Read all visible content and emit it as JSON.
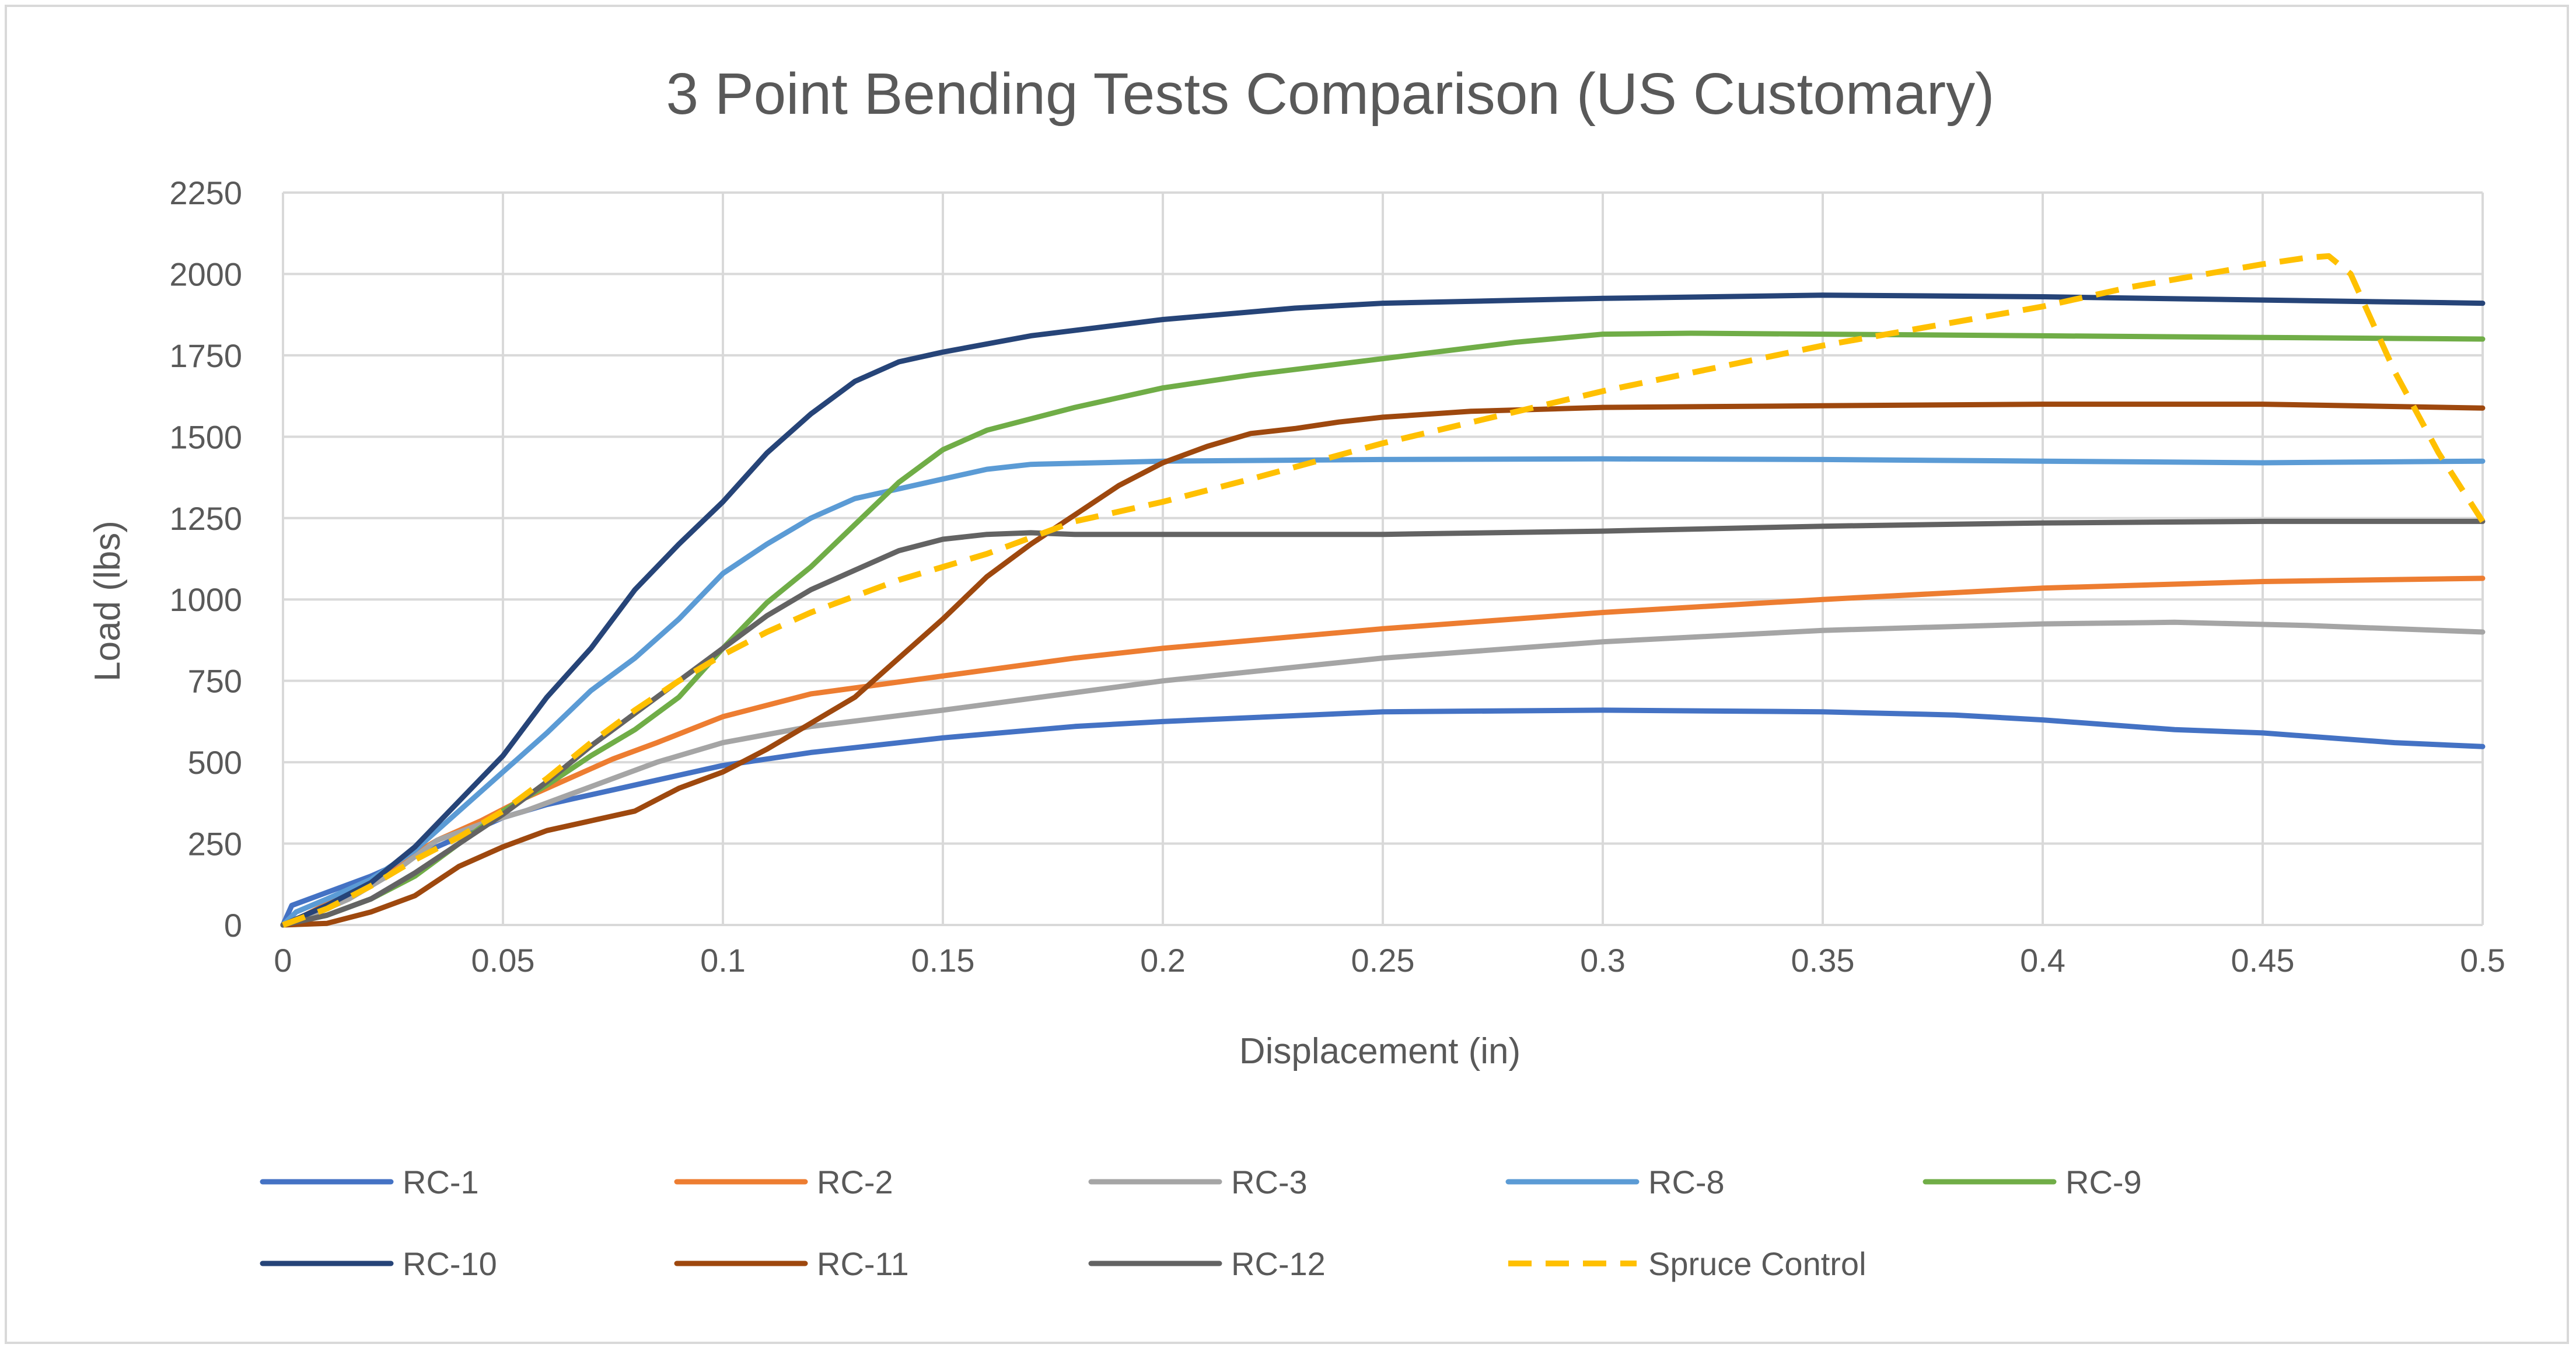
{
  "chart_data": {
    "type": "line",
    "title": "3 Point Bending Tests Comparison (US Customary)",
    "xlabel": "Displacement (in)",
    "ylabel": "Load (lbs)",
    "xlim": [
      0,
      0.5
    ],
    "ylim": [
      0,
      2250
    ],
    "x_ticks": [
      "0",
      "0.05",
      "0.1",
      "0.15",
      "0.2",
      "0.25",
      "0.3",
      "0.35",
      "0.4",
      "0.45",
      "0.5"
    ],
    "y_ticks": [
      "0",
      "250",
      "500",
      "750",
      "1000",
      "1250",
      "1500",
      "1750",
      "2000",
      "2250"
    ],
    "grid": true,
    "legend_position": "bottom",
    "series": [
      {
        "name": "RC-1",
        "color": "#4472c4",
        "dash": false,
        "points": [
          [
            0,
            0
          ],
          [
            0.002,
            60
          ],
          [
            0.01,
            100
          ],
          [
            0.02,
            150
          ],
          [
            0.03,
            210
          ],
          [
            0.04,
            270
          ],
          [
            0.05,
            330
          ],
          [
            0.06,
            370
          ],
          [
            0.07,
            400
          ],
          [
            0.08,
            430
          ],
          [
            0.09,
            460
          ],
          [
            0.1,
            490
          ],
          [
            0.12,
            530
          ],
          [
            0.15,
            575
          ],
          [
            0.18,
            610
          ],
          [
            0.2,
            625
          ],
          [
            0.25,
            655
          ],
          [
            0.3,
            660
          ],
          [
            0.35,
            655
          ],
          [
            0.38,
            645
          ],
          [
            0.4,
            630
          ],
          [
            0.43,
            600
          ],
          [
            0.45,
            590
          ],
          [
            0.48,
            560
          ],
          [
            0.5,
            548
          ]
        ]
      },
      {
        "name": "RC-2",
        "color": "#ed7d31",
        "dash": false,
        "points": [
          [
            0,
            0
          ],
          [
            0.005,
            30
          ],
          [
            0.015,
            100
          ],
          [
            0.025,
            180
          ],
          [
            0.035,
            260
          ],
          [
            0.045,
            320
          ],
          [
            0.055,
            390
          ],
          [
            0.065,
            450
          ],
          [
            0.075,
            510
          ],
          [
            0.085,
            560
          ],
          [
            0.1,
            640
          ],
          [
            0.12,
            710
          ],
          [
            0.15,
            765
          ],
          [
            0.18,
            820
          ],
          [
            0.2,
            850
          ],
          [
            0.25,
            910
          ],
          [
            0.3,
            960
          ],
          [
            0.35,
            1000
          ],
          [
            0.4,
            1035
          ],
          [
            0.45,
            1055
          ],
          [
            0.5,
            1065
          ]
        ]
      },
      {
        "name": "RC-3",
        "color": "#a5a5a5",
        "dash": false,
        "points": [
          [
            0,
            0
          ],
          [
            0.005,
            20
          ],
          [
            0.015,
            80
          ],
          [
            0.025,
            160
          ],
          [
            0.035,
            260
          ],
          [
            0.045,
            310
          ],
          [
            0.055,
            350
          ],
          [
            0.065,
            400
          ],
          [
            0.075,
            450
          ],
          [
            0.085,
            500
          ],
          [
            0.1,
            560
          ],
          [
            0.12,
            610
          ],
          [
            0.15,
            660
          ],
          [
            0.2,
            750
          ],
          [
            0.25,
            820
          ],
          [
            0.3,
            870
          ],
          [
            0.35,
            905
          ],
          [
            0.4,
            925
          ],
          [
            0.43,
            930
          ],
          [
            0.46,
            920
          ],
          [
            0.5,
            900
          ]
        ]
      },
      {
        "name": "RC-8",
        "color": "#5b9bd5",
        "dash": false,
        "points": [
          [
            0,
            0
          ],
          [
            0.003,
            40
          ],
          [
            0.01,
            80
          ],
          [
            0.02,
            140
          ],
          [
            0.03,
            230
          ],
          [
            0.04,
            350
          ],
          [
            0.05,
            470
          ],
          [
            0.06,
            590
          ],
          [
            0.07,
            720
          ],
          [
            0.08,
            820
          ],
          [
            0.09,
            940
          ],
          [
            0.1,
            1080
          ],
          [
            0.11,
            1170
          ],
          [
            0.12,
            1250
          ],
          [
            0.13,
            1310
          ],
          [
            0.14,
            1340
          ],
          [
            0.15,
            1370
          ],
          [
            0.16,
            1400
          ],
          [
            0.17,
            1415
          ],
          [
            0.2,
            1425
          ],
          [
            0.25,
            1430
          ],
          [
            0.3,
            1432
          ],
          [
            0.35,
            1430
          ],
          [
            0.4,
            1425
          ],
          [
            0.45,
            1420
          ],
          [
            0.5,
            1425
          ]
        ]
      },
      {
        "name": "RC-9",
        "color": "#70ad47",
        "dash": false,
        "points": [
          [
            0,
            0
          ],
          [
            0.01,
            30
          ],
          [
            0.02,
            80
          ],
          [
            0.03,
            150
          ],
          [
            0.04,
            250
          ],
          [
            0.05,
            350
          ],
          [
            0.06,
            430
          ],
          [
            0.07,
            520
          ],
          [
            0.08,
            600
          ],
          [
            0.09,
            700
          ],
          [
            0.1,
            850
          ],
          [
            0.11,
            990
          ],
          [
            0.12,
            1100
          ],
          [
            0.13,
            1230
          ],
          [
            0.14,
            1360
          ],
          [
            0.15,
            1460
          ],
          [
            0.16,
            1520
          ],
          [
            0.18,
            1590
          ],
          [
            0.2,
            1650
          ],
          [
            0.22,
            1690
          ],
          [
            0.25,
            1740
          ],
          [
            0.28,
            1790
          ],
          [
            0.3,
            1815
          ],
          [
            0.32,
            1818
          ],
          [
            0.35,
            1815
          ],
          [
            0.4,
            1810
          ],
          [
            0.45,
            1805
          ],
          [
            0.5,
            1800
          ]
        ]
      },
      {
        "name": "RC-10",
        "color": "#264478",
        "dash": false,
        "points": [
          [
            0,
            0
          ],
          [
            0.01,
            60
          ],
          [
            0.02,
            130
          ],
          [
            0.03,
            240
          ],
          [
            0.04,
            380
          ],
          [
            0.05,
            520
          ],
          [
            0.06,
            700
          ],
          [
            0.07,
            850
          ],
          [
            0.08,
            1030
          ],
          [
            0.09,
            1170
          ],
          [
            0.1,
            1300
          ],
          [
            0.11,
            1450
          ],
          [
            0.12,
            1570
          ],
          [
            0.13,
            1670
          ],
          [
            0.14,
            1730
          ],
          [
            0.15,
            1760
          ],
          [
            0.17,
            1810
          ],
          [
            0.2,
            1860
          ],
          [
            0.23,
            1895
          ],
          [
            0.25,
            1910
          ],
          [
            0.3,
            1925
          ],
          [
            0.35,
            1935
          ],
          [
            0.4,
            1930
          ],
          [
            0.45,
            1920
          ],
          [
            0.5,
            1910
          ]
        ]
      },
      {
        "name": "RC-11",
        "color": "#9e480e",
        "dash": false,
        "points": [
          [
            0,
            0
          ],
          [
            0.01,
            5
          ],
          [
            0.02,
            40
          ],
          [
            0.03,
            90
          ],
          [
            0.04,
            180
          ],
          [
            0.05,
            240
          ],
          [
            0.06,
            290
          ],
          [
            0.07,
            320
          ],
          [
            0.08,
            350
          ],
          [
            0.09,
            420
          ],
          [
            0.1,
            470
          ],
          [
            0.11,
            540
          ],
          [
            0.12,
            620
          ],
          [
            0.13,
            700
          ],
          [
            0.14,
            820
          ],
          [
            0.15,
            940
          ],
          [
            0.16,
            1070
          ],
          [
            0.17,
            1170
          ],
          [
            0.18,
            1260
          ],
          [
            0.19,
            1350
          ],
          [
            0.2,
            1420
          ],
          [
            0.21,
            1470
          ],
          [
            0.22,
            1510
          ],
          [
            0.23,
            1525
          ],
          [
            0.24,
            1545
          ],
          [
            0.25,
            1560
          ],
          [
            0.27,
            1578
          ],
          [
            0.3,
            1590
          ],
          [
            0.35,
            1595
          ],
          [
            0.4,
            1600
          ],
          [
            0.45,
            1600
          ],
          [
            0.5,
            1588
          ]
        ]
      },
      {
        "name": "RC-12",
        "color": "#636363",
        "dash": false,
        "points": [
          [
            0,
            0
          ],
          [
            0.01,
            30
          ],
          [
            0.02,
            80
          ],
          [
            0.03,
            160
          ],
          [
            0.04,
            250
          ],
          [
            0.05,
            340
          ],
          [
            0.06,
            440
          ],
          [
            0.07,
            550
          ],
          [
            0.08,
            650
          ],
          [
            0.09,
            750
          ],
          [
            0.1,
            850
          ],
          [
            0.11,
            950
          ],
          [
            0.12,
            1030
          ],
          [
            0.13,
            1090
          ],
          [
            0.14,
            1150
          ],
          [
            0.15,
            1185
          ],
          [
            0.16,
            1200
          ],
          [
            0.17,
            1205
          ],
          [
            0.18,
            1200
          ],
          [
            0.2,
            1200
          ],
          [
            0.25,
            1200
          ],
          [
            0.3,
            1210
          ],
          [
            0.35,
            1225
          ],
          [
            0.4,
            1235
          ],
          [
            0.45,
            1240
          ],
          [
            0.5,
            1240
          ]
        ]
      },
      {
        "name": "Spruce Control",
        "color": "#ffc000",
        "dash": true,
        "points": [
          [
            0,
            0
          ],
          [
            0.01,
            50
          ],
          [
            0.02,
            120
          ],
          [
            0.03,
            200
          ],
          [
            0.04,
            270
          ],
          [
            0.05,
            350
          ],
          [
            0.06,
            450
          ],
          [
            0.07,
            560
          ],
          [
            0.08,
            660
          ],
          [
            0.09,
            750
          ],
          [
            0.1,
            830
          ],
          [
            0.11,
            900
          ],
          [
            0.12,
            960
          ],
          [
            0.13,
            1010
          ],
          [
            0.14,
            1060
          ],
          [
            0.15,
            1100
          ],
          [
            0.16,
            1140
          ],
          [
            0.17,
            1190
          ],
          [
            0.18,
            1240
          ],
          [
            0.2,
            1300
          ],
          [
            0.22,
            1370
          ],
          [
            0.25,
            1480
          ],
          [
            0.3,
            1640
          ],
          [
            0.35,
            1780
          ],
          [
            0.4,
            1900
          ],
          [
            0.42,
            1960
          ],
          [
            0.45,
            2030
          ],
          [
            0.46,
            2050
          ],
          [
            0.465,
            2055
          ],
          [
            0.47,
            2000
          ],
          [
            0.48,
            1700
          ],
          [
            0.49,
            1450
          ],
          [
            0.5,
            1240
          ]
        ]
      }
    ]
  }
}
